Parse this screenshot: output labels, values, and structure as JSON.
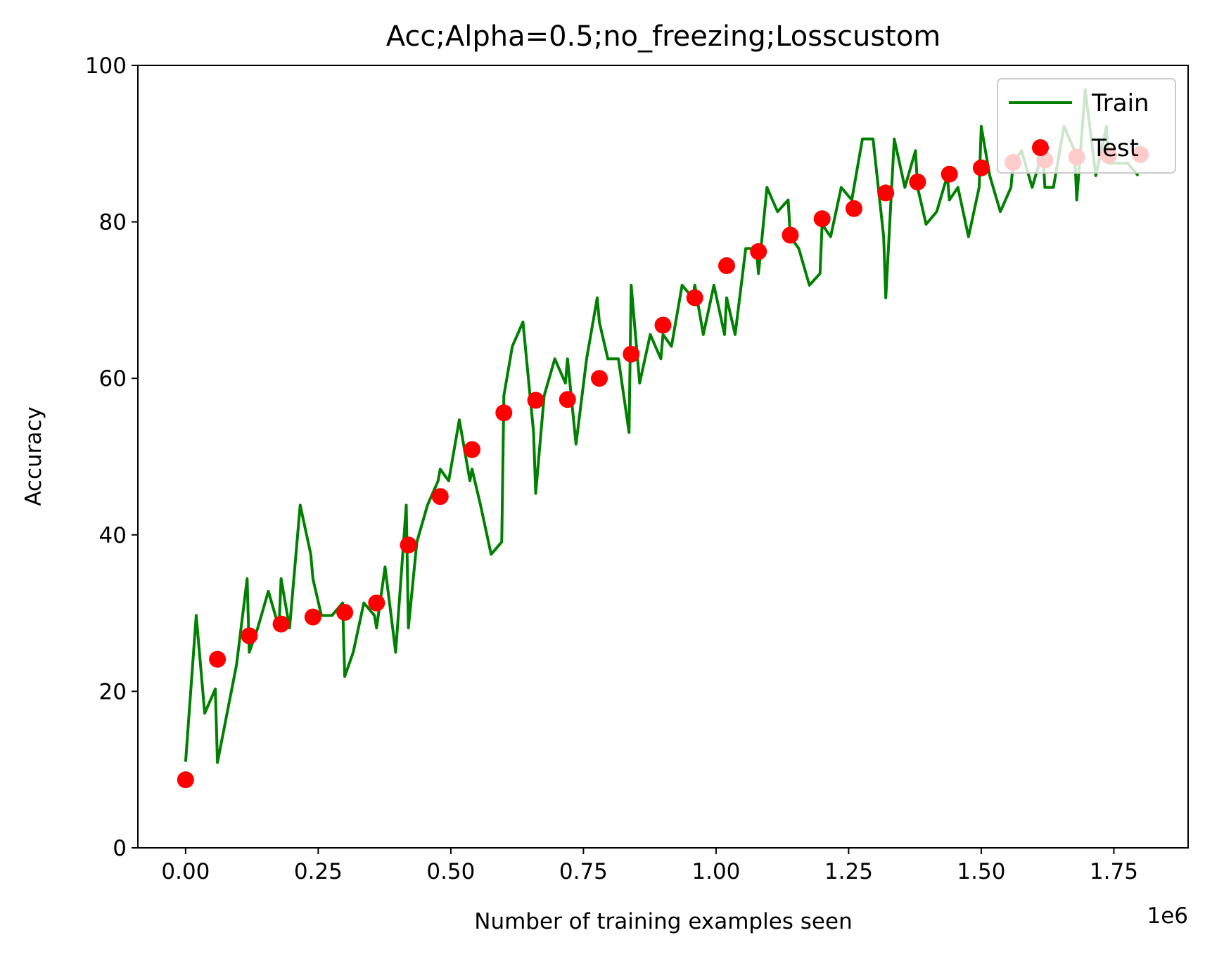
{
  "chart_data": {
    "type": "line",
    "title": "Acc;Alpha=0.5;no_freezing;Losscustom",
    "xlabel": "Number of training examples seen",
    "ylabel": "Accuracy",
    "x_offset_label": "1e6",
    "xlim": [
      -0.09,
      1.89
    ],
    "ylim": [
      0,
      100
    ],
    "xticks": [
      0.0,
      0.25,
      0.5,
      0.75,
      1.0,
      1.25,
      1.5,
      1.75
    ],
    "xtick_labels": [
      "0.00",
      "0.25",
      "0.50",
      "0.75",
      "1.00",
      "1.25",
      "1.50",
      "1.75"
    ],
    "yticks": [
      0,
      20,
      40,
      60,
      80,
      100
    ],
    "ytick_labels": [
      "0",
      "20",
      "40",
      "60",
      "80",
      "100"
    ],
    "grid": false,
    "legend": "top-right",
    "legend_entries": [
      "Train",
      "Test"
    ],
    "series": [
      {
        "name": "Train",
        "kind": "line",
        "color": "#008000",
        "x": [
          0.0,
          0.02,
          0.036,
          0.056,
          0.06,
          0.096,
          0.116,
          0.12,
          0.136,
          0.156,
          0.176,
          0.18,
          0.196,
          0.216,
          0.236,
          0.24,
          0.256,
          0.276,
          0.296,
          0.3,
          0.316,
          0.336,
          0.356,
          0.36,
          0.376,
          0.396,
          0.416,
          0.42,
          0.436,
          0.456,
          0.476,
          0.48,
          0.496,
          0.516,
          0.536,
          0.54,
          0.556,
          0.576,
          0.596,
          0.6,
          0.616,
          0.636,
          0.656,
          0.66,
          0.676,
          0.696,
          0.716,
          0.72,
          0.736,
          0.756,
          0.776,
          0.78,
          0.796,
          0.816,
          0.836,
          0.84,
          0.856,
          0.876,
          0.896,
          0.9,
          0.916,
          0.936,
          0.956,
          0.96,
          0.976,
          0.996,
          1.016,
          1.02,
          1.036,
          1.056,
          1.076,
          1.08,
          1.096,
          1.116,
          1.136,
          1.14,
          1.156,
          1.176,
          1.196,
          1.2,
          1.216,
          1.236,
          1.256,
          1.26,
          1.276,
          1.296,
          1.316,
          1.32,
          1.336,
          1.356,
          1.376,
          1.38,
          1.396,
          1.416,
          1.436,
          1.44,
          1.456,
          1.476,
          1.496,
          1.5,
          1.516,
          1.536,
          1.556,
          1.56,
          1.576,
          1.596,
          1.616,
          1.62,
          1.636,
          1.656,
          1.676,
          1.68,
          1.696,
          1.716,
          1.736,
          1.74,
          1.756,
          1.776,
          1.796
        ],
        "y": [
          11.0,
          29.7,
          17.2,
          20.3,
          10.9,
          23.4,
          34.4,
          25.0,
          28.1,
          32.8,
          28.1,
          34.4,
          28.1,
          43.8,
          37.5,
          34.4,
          29.7,
          29.7,
          31.3,
          21.9,
          25.0,
          31.3,
          29.7,
          28.1,
          35.9,
          25.0,
          43.8,
          28.1,
          39.1,
          43.8,
          46.9,
          48.4,
          46.9,
          54.7,
          46.9,
          48.4,
          43.8,
          37.5,
          39.1,
          57.8,
          64.1,
          67.2,
          53.1,
          45.3,
          57.8,
          62.5,
          59.4,
          62.5,
          51.6,
          62.5,
          70.3,
          67.2,
          62.5,
          62.5,
          53.1,
          71.9,
          59.4,
          65.6,
          62.5,
          65.6,
          64.1,
          71.9,
          70.3,
          71.9,
          65.6,
          71.9,
          65.6,
          70.3,
          65.6,
          76.6,
          76.6,
          73.4,
          84.4,
          81.3,
          82.8,
          78.1,
          76.6,
          71.9,
          73.4,
          79.7,
          78.1,
          84.4,
          82.8,
          84.4,
          90.6,
          90.6,
          78.1,
          70.3,
          90.6,
          84.4,
          89.1,
          84.4,
          79.7,
          81.3,
          85.9,
          82.8,
          84.4,
          78.1,
          84.4,
          92.2,
          85.9,
          81.3,
          84.4,
          87.5,
          89.1,
          84.4,
          89.1,
          84.4,
          84.4,
          92.2,
          89.1,
          82.8,
          96.9,
          85.9,
          92.2,
          87.5,
          87.5,
          87.5,
          85.9
        ]
      },
      {
        "name": "Test",
        "kind": "scatter",
        "color": "#ff0000",
        "x": [
          0.0,
          0.06,
          0.12,
          0.18,
          0.24,
          0.3,
          0.36,
          0.42,
          0.48,
          0.54,
          0.6,
          0.66,
          0.72,
          0.78,
          0.84,
          0.9,
          0.96,
          1.02,
          1.08,
          1.14,
          1.2,
          1.26,
          1.32,
          1.38,
          1.44,
          1.5,
          1.56,
          1.62,
          1.68,
          1.74,
          1.8
        ],
        "y": [
          8.7,
          24.1,
          27.1,
          28.6,
          29.5,
          30.1,
          31.3,
          38.7,
          44.9,
          50.9,
          55.6,
          57.2,
          57.3,
          60.0,
          63.1,
          66.8,
          70.3,
          74.4,
          76.2,
          78.3,
          80.4,
          81.7,
          83.7,
          85.1,
          86.1,
          86.9,
          87.6,
          87.9,
          88.3,
          88.5,
          88.6
        ]
      }
    ]
  }
}
